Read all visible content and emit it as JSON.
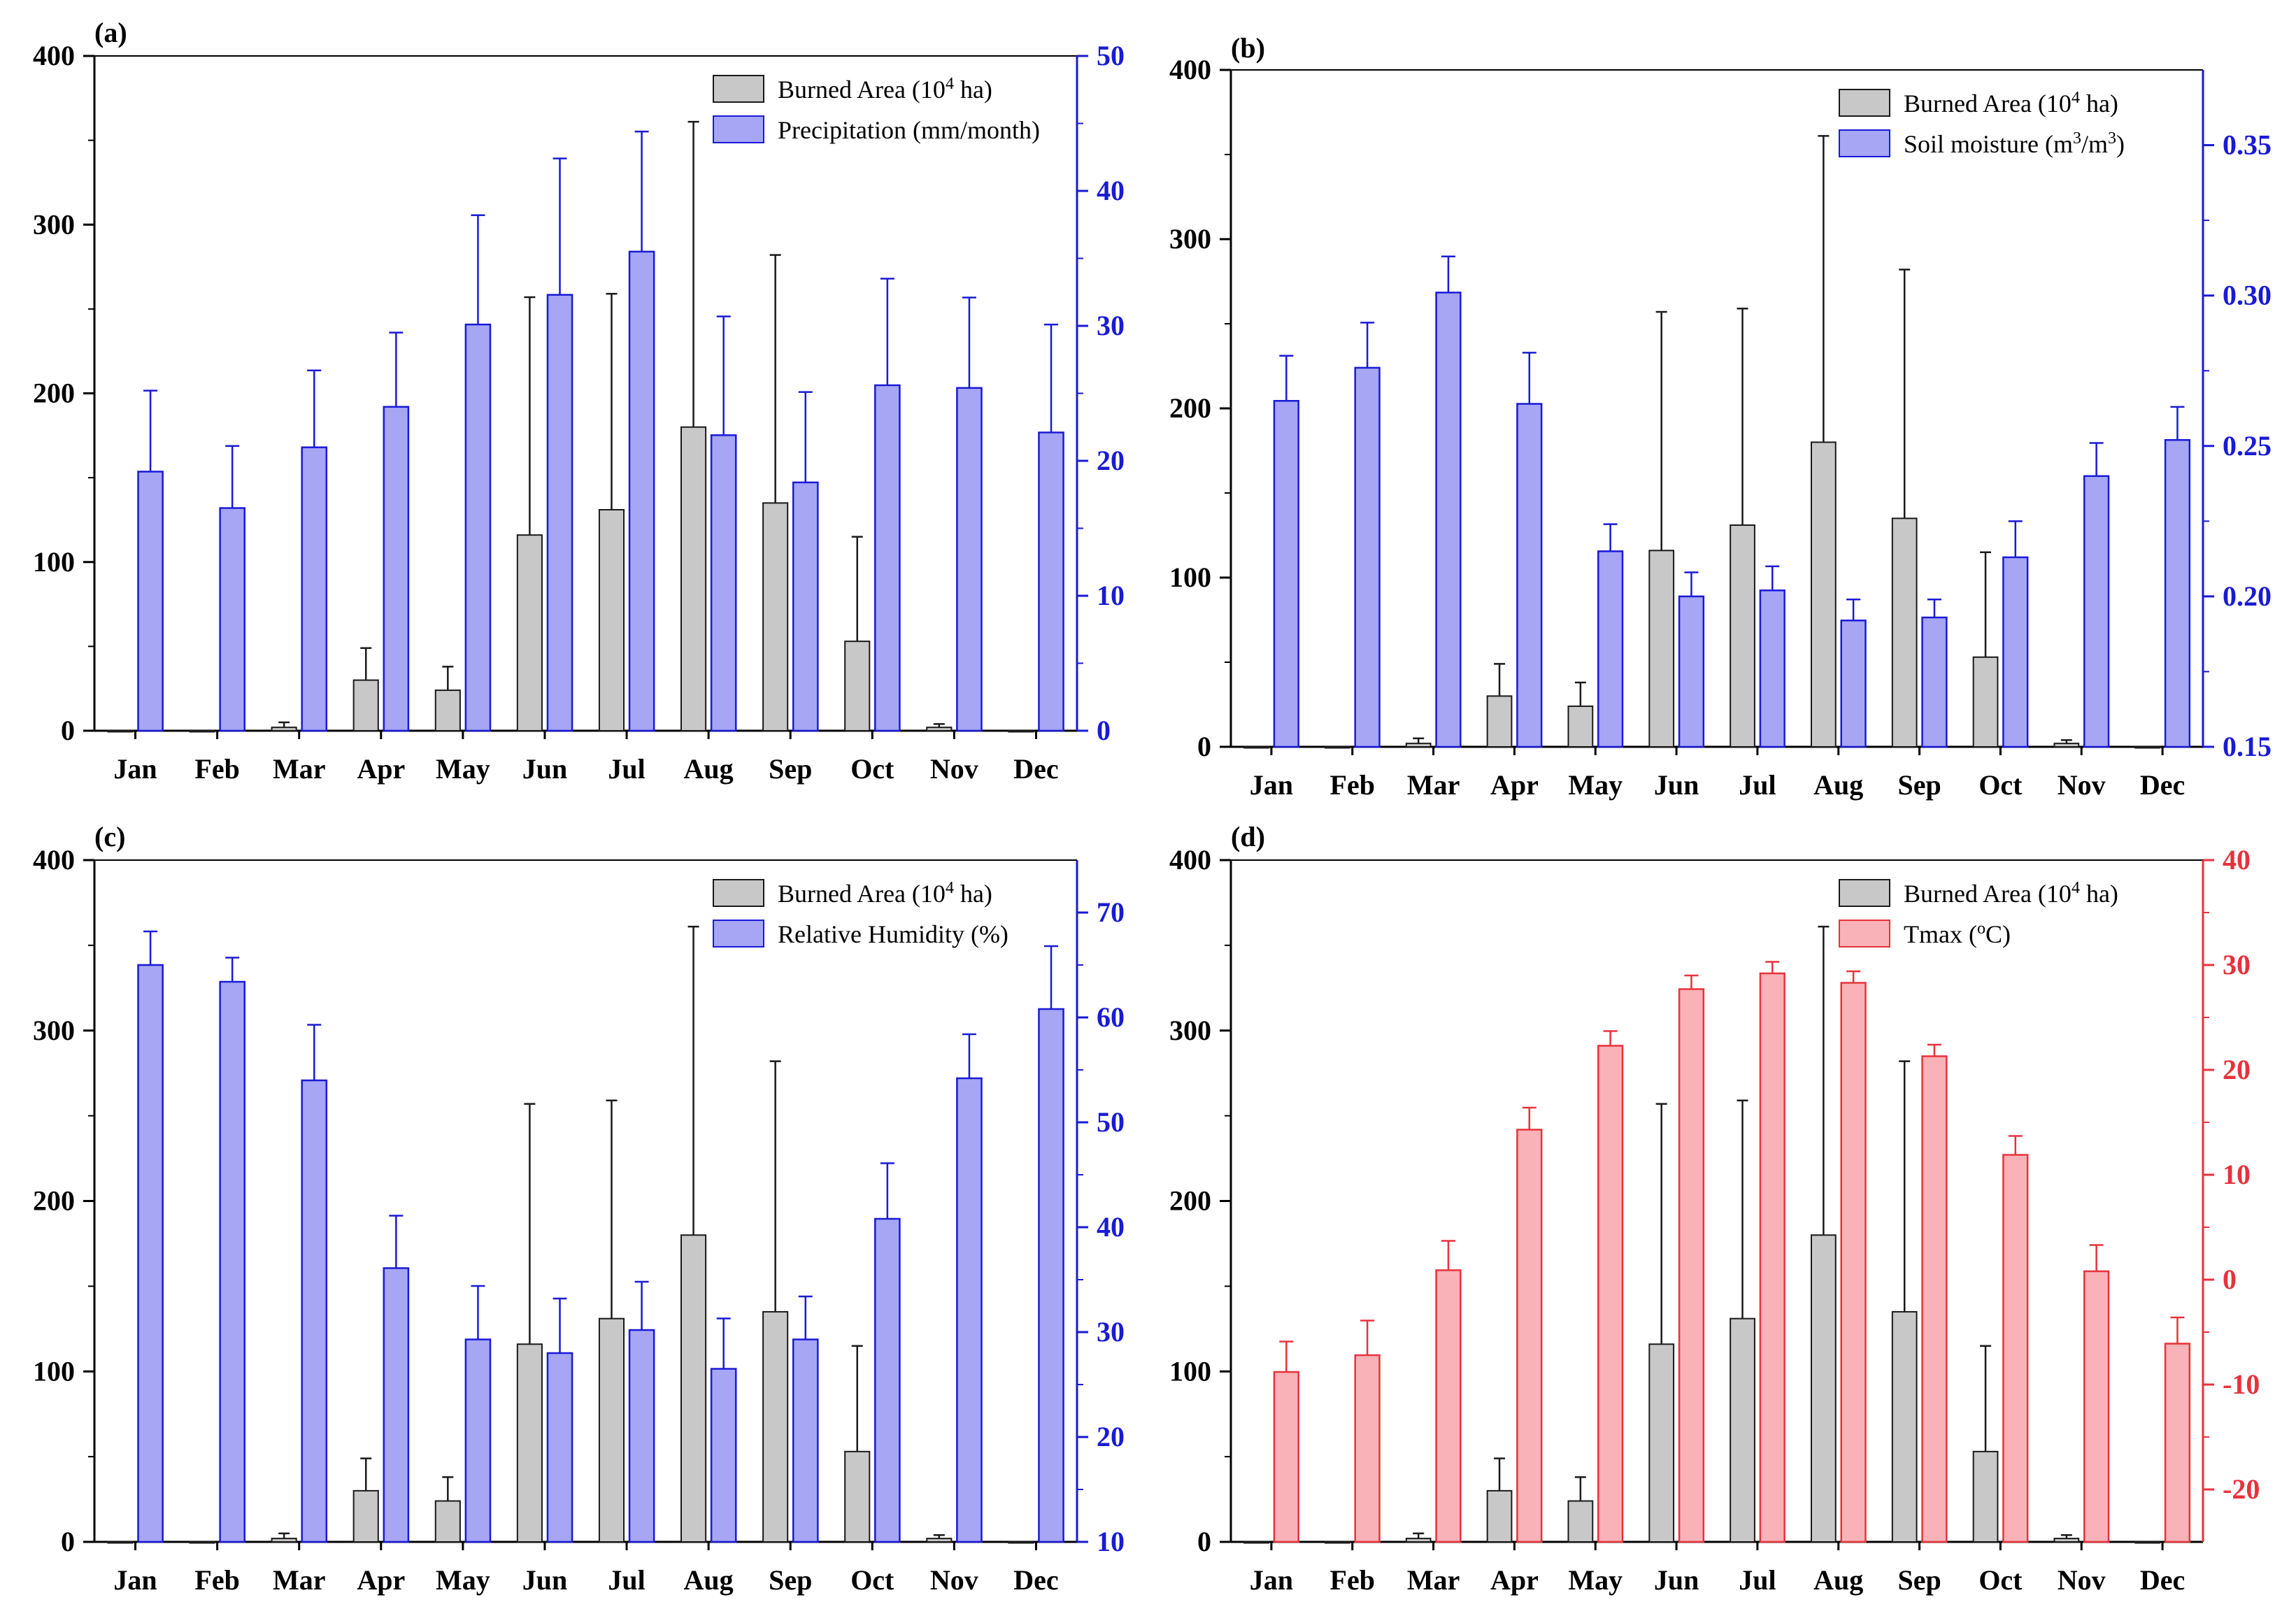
{
  "colors": {
    "burned_fill": "#c8c8c8",
    "burned_edge": "#1a1a1a",
    "precip_fill": "#a6a6f5",
    "precip_edge": "#1a1ad6",
    "tmax_fill": "#f8b2b8",
    "tmax_edge": "#e8323c",
    "left_axis": "#000000"
  },
  "chart_data": [
    {
      "panel": "(a)",
      "type": "bar",
      "categories": [
        "Jan",
        "Feb",
        "Mar",
        "Apr",
        "May",
        "Jun",
        "Jul",
        "Aug",
        "Sep",
        "Oct",
        "Nov",
        "Dec"
      ],
      "left_axis": {
        "ylim": [
          0,
          400
        ],
        "ticks": [
          0,
          100,
          200,
          300,
          400
        ],
        "tick_labels": [
          "0",
          "100",
          "200",
          "300",
          "400"
        ]
      },
      "right_axis": {
        "ylim": [
          0,
          50
        ],
        "ticks": [
          0,
          10,
          20,
          30,
          40,
          50
        ],
        "tick_labels": [
          "0",
          "10",
          "20",
          "30",
          "40",
          "50"
        ],
        "color": "#1a1ad6"
      },
      "legend_position": "top-right",
      "series": [
        {
          "name": "Burned Area",
          "legend": {
            "pre": "Burned Area (10",
            "sup": "4",
            "post": " ha)"
          },
          "axis": "left",
          "values": [
            0,
            0,
            2,
            30,
            24,
            116,
            131,
            180,
            135,
            53,
            2,
            0
          ],
          "errors": [
            0,
            0,
            3,
            19,
            14,
            141,
            128,
            181,
            147,
            62,
            2,
            0
          ]
        },
        {
          "name": "Precipitation (mm/month)",
          "legend": {
            "pre": "Precipitation (mm/month)",
            "sup": "",
            "post": ""
          },
          "axis": "right",
          "values": [
            19.2,
            16.5,
            21,
            24,
            30.1,
            32.3,
            35.5,
            21.9,
            18.4,
            25.6,
            25.4,
            22.1
          ],
          "errors": [
            6,
            4.6,
            5.7,
            5.5,
            8.1,
            10.1,
            8.9,
            8.8,
            6.7,
            7.9,
            6.7,
            8
          ]
        }
      ]
    },
    {
      "panel": "(b)",
      "type": "bar",
      "categories": [
        "Jan",
        "Feb",
        "Mar",
        "Apr",
        "May",
        "Jun",
        "Jul",
        "Aug",
        "Sep",
        "Oct",
        "Nov",
        "Dec"
      ],
      "left_axis": {
        "ylim": [
          0,
          400
        ],
        "ticks": [
          0,
          100,
          200,
          300,
          400
        ],
        "tick_labels": [
          "0",
          "100",
          "200",
          "300",
          "400"
        ]
      },
      "right_axis": {
        "ylim": [
          0.15,
          0.375
        ],
        "ticks": [
          0.15,
          0.2,
          0.25,
          0.3,
          0.35
        ],
        "tick_labels": [
          "0.15",
          "0.20",
          "0.25",
          "0.30",
          "0.35"
        ],
        "color": "#1a1ad6"
      },
      "legend_position": "top-right",
      "series": [
        {
          "name": "Burned Area",
          "legend": {
            "pre": "Burned Area (10",
            "sup": "4",
            "post": " ha)"
          },
          "axis": "left",
          "values": [
            0,
            0,
            2,
            30,
            24,
            116,
            131,
            180,
            135,
            53,
            2,
            0
          ],
          "errors": [
            0,
            0,
            3,
            19,
            14,
            141,
            128,
            181,
            147,
            62,
            2,
            0
          ]
        },
        {
          "name": "Soil moisture (m3/m3)",
          "legend": {
            "pre": "Soil moisture (m",
            "sup": "3",
            "post": "/m",
            "sup2": "3",
            "post2": ")"
          },
          "axis": "right",
          "values": [
            0.265,
            0.276,
            0.301,
            0.264,
            0.215,
            0.2,
            0.202,
            0.192,
            0.193,
            0.213,
            0.24,
            0.252
          ],
          "errors": [
            0.015,
            0.015,
            0.012,
            0.017,
            0.009,
            0.008,
            0.008,
            0.007,
            0.006,
            0.012,
            0.011,
            0.011
          ]
        }
      ]
    },
    {
      "panel": "(c)",
      "type": "bar",
      "categories": [
        "Jan",
        "Feb",
        "Mar",
        "Apr",
        "May",
        "Jun",
        "Jul",
        "Aug",
        "Sep",
        "Oct",
        "Nov",
        "Dec"
      ],
      "left_axis": {
        "ylim": [
          0,
          400
        ],
        "ticks": [
          0,
          100,
          200,
          300,
          400
        ],
        "tick_labels": [
          "0",
          "100",
          "200",
          "300",
          "400"
        ]
      },
      "right_axis": {
        "ylim": [
          10,
          75
        ],
        "ticks": [
          10,
          20,
          30,
          40,
          50,
          60,
          70
        ],
        "tick_labels": [
          "10",
          "20",
          "30",
          "40",
          "50",
          "60",
          "70"
        ],
        "color": "#1a1ad6"
      },
      "legend_position": "top-right",
      "series": [
        {
          "name": "Burned Area",
          "legend": {
            "pre": "Burned Area (10",
            "sup": "4",
            "post": " ha)"
          },
          "axis": "left",
          "values": [
            0,
            0,
            2,
            30,
            24,
            116,
            131,
            180,
            135,
            53,
            2,
            0
          ],
          "errors": [
            0,
            0,
            3,
            19,
            14,
            141,
            128,
            181,
            147,
            62,
            2,
            0
          ]
        },
        {
          "name": "Relative Humidity (%)",
          "legend": {
            "pre": "Relative Humidity (%)",
            "sup": "",
            "post": ""
          },
          "axis": "right",
          "values": [
            65,
            63.4,
            54,
            36.1,
            29.3,
            28,
            30.2,
            26.5,
            29.3,
            40.8,
            54.2,
            60.8
          ],
          "errors": [
            3.2,
            2.3,
            5.3,
            5,
            5.1,
            5.2,
            4.6,
            4.8,
            4.1,
            5.3,
            4.2,
            6
          ]
        }
      ]
    },
    {
      "panel": "(d)",
      "type": "bar",
      "categories": [
        "Jan",
        "Feb",
        "Mar",
        "Apr",
        "May",
        "Jun",
        "Jul",
        "Aug",
        "Sep",
        "Oct",
        "Nov",
        "Dec"
      ],
      "left_axis": {
        "ylim": [
          0,
          400
        ],
        "ticks": [
          0,
          100,
          200,
          300,
          400
        ],
        "tick_labels": [
          "0",
          "100",
          "200",
          "300",
          "400"
        ]
      },
      "right_axis": {
        "ylim": [
          -25,
          40
        ],
        "ticks": [
          -20,
          -10,
          0,
          10,
          20,
          30,
          40
        ],
        "tick_labels": [
          "-20",
          "-10",
          "0",
          "10",
          "20",
          "30",
          "40"
        ],
        "color": "#e8323c"
      },
      "legend_position": "top-right",
      "series": [
        {
          "name": "Burned Area",
          "legend": {
            "pre": "Burned Area (10",
            "sup": "4",
            "post": " ha)"
          },
          "axis": "left",
          "values": [
            0,
            0,
            2,
            30,
            24,
            116,
            131,
            180,
            135,
            53,
            2,
            0
          ],
          "errors": [
            0,
            0,
            3,
            19,
            14,
            141,
            128,
            181,
            147,
            62,
            2,
            0
          ]
        },
        {
          "name": "Tmax (oC)",
          "legend": {
            "pre": "Tmax (",
            "sup": "o",
            "post": "C)"
          },
          "axis": "right",
          "values": [
            -8.8,
            -7.2,
            0.9,
            14.3,
            22.3,
            27.7,
            29.2,
            28.3,
            21.3,
            11.9,
            0.8,
            -6.1
          ],
          "errors": [
            2.9,
            3.3,
            2.8,
            2.1,
            1.4,
            1.3,
            1.1,
            1.1,
            1.1,
            1.8,
            2.5,
            2.5
          ]
        }
      ]
    }
  ]
}
